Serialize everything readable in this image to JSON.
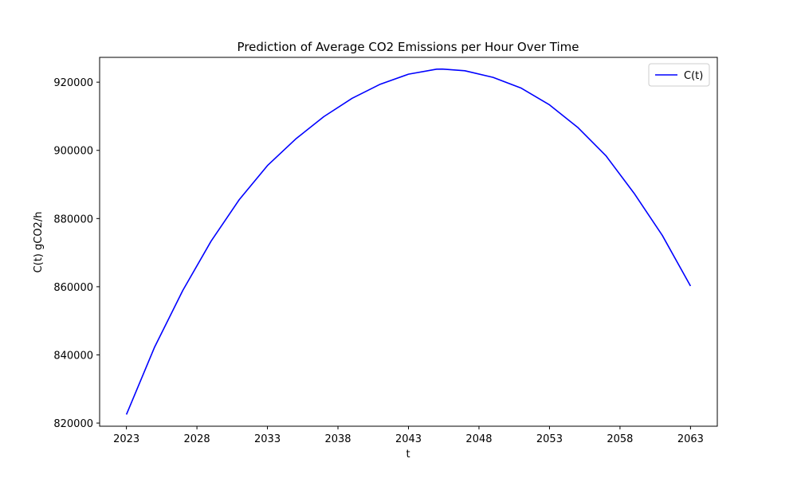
{
  "chart_data": {
    "type": "line",
    "title": "Prediction of Average CO2 Emissions per Hour Over Time",
    "xlabel": "t",
    "ylabel": "C(t) gCO2/h",
    "xlim": [
      2021.1,
      2064.9
    ],
    "ylim": [
      819080,
      927280
    ],
    "xticks": [
      2023,
      2028,
      2033,
      2038,
      2043,
      2048,
      2053,
      2058,
      2063
    ],
    "yticks": [
      820000,
      840000,
      860000,
      880000,
      900000,
      920000
    ],
    "ytick_labels": [
      "820000",
      "840000",
      "860000",
      "880000",
      "900000",
      "920000"
    ],
    "grid": false,
    "legend_position": "top-right",
    "series": [
      {
        "name": "C(t)",
        "color": "#0000ff",
        "x": [
          2023,
          2025,
          2027,
          2029,
          2031,
          2033,
          2035,
          2037,
          2039,
          2041,
          2043,
          2045,
          2045.4,
          2047,
          2049,
          2051,
          2053,
          2055,
          2057,
          2059,
          2061,
          2063
        ],
        "y": [
          822500,
          842310,
          858924,
          873337,
          885538,
          895535,
          903320,
          909895,
          915257,
          919405,
          922339,
          923825,
          923850,
          923345,
          921408,
          918243,
          913360,
          906757,
          898442,
          887415,
          875063,
          860200
        ]
      }
    ]
  }
}
